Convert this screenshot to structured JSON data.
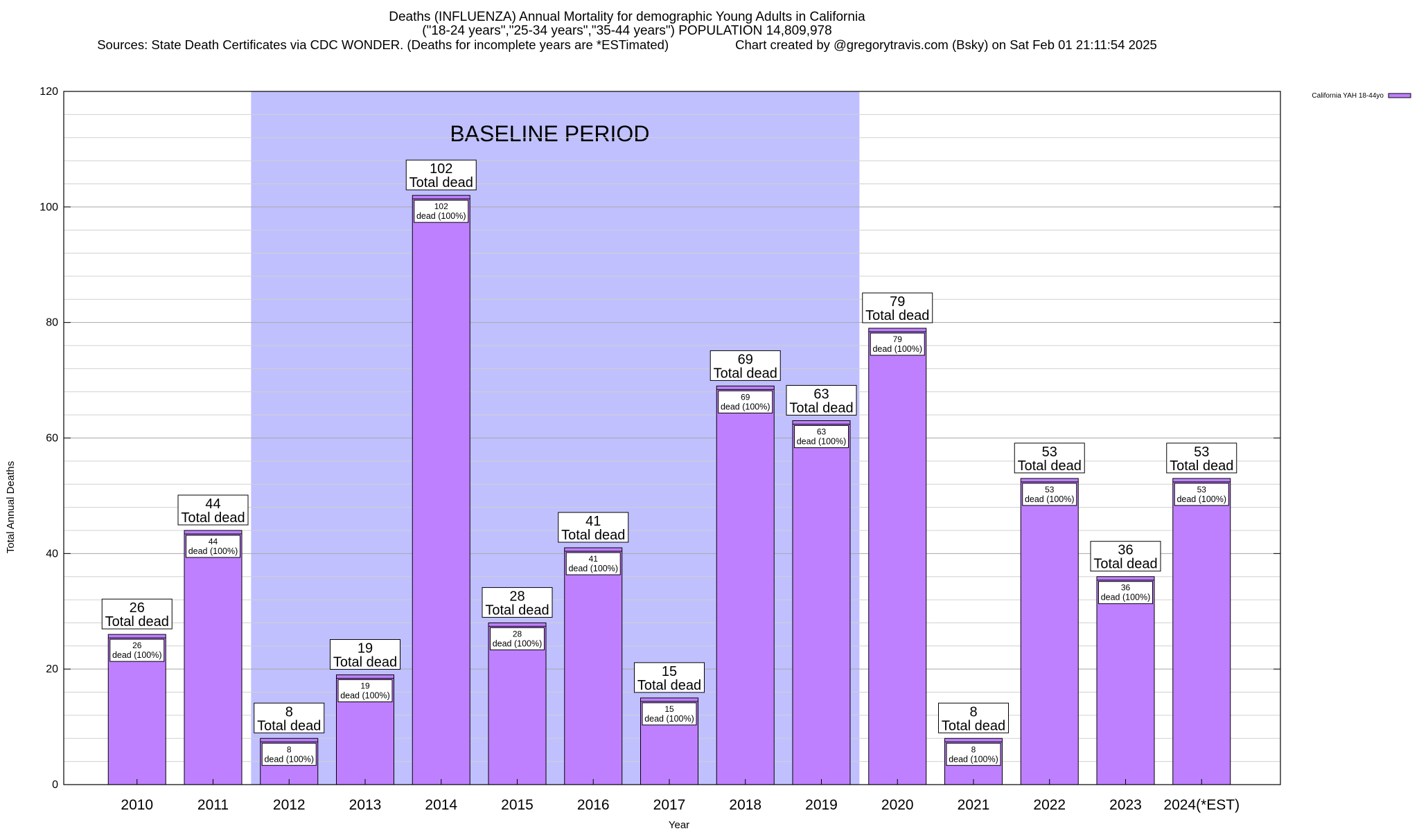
{
  "chart_data": {
    "type": "bar",
    "title": "Deaths (INFLUENZA) Annual Mortality for demographic Young Adults in California",
    "subtitle": "(\"18-24 years\",\"25-34 years\",\"35-44 years\") POPULATION 14,809,978",
    "sources": "Sources: State Death Certificates via CDC WONDER. (Deaths for incomplete years are *ESTimated)",
    "credit": "Chart created by @gregorytravis.com (Bsky) on Sat Feb 01 21:11:54 2025",
    "xlabel": "Year",
    "ylabel": "Total Annual Deaths",
    "ylim": [
      0,
      120
    ],
    "yticks": [
      "0",
      "20",
      "40",
      "60",
      "80",
      "100",
      "120"
    ],
    "grid": true,
    "legend_placement": "top-right",
    "categories": [
      "2010",
      "2011",
      "2012",
      "2013",
      "2014",
      "2015",
      "2016",
      "2017",
      "2018",
      "2019",
      "2020",
      "2021",
      "2022",
      "2023",
      "2024(*EST)"
    ],
    "series": [
      {
        "name": "California YAH 18-44yo",
        "color": "#bf80ff",
        "values": [
          26,
          44,
          8,
          19,
          102,
          28,
          41,
          15,
          69,
          63,
          79,
          8,
          53,
          36,
          53
        ]
      }
    ],
    "total_label_text": "Total dead",
    "segment_label_text": "dead (100%)",
    "baseline": {
      "label": "BASELINE PERIOD",
      "from": "2012",
      "to": "2019",
      "color": "#c0c0ff"
    }
  }
}
